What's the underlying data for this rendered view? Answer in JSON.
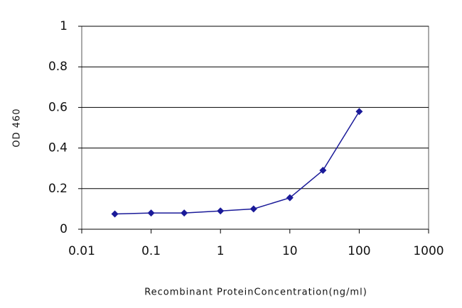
{
  "chart_data": {
    "type": "line",
    "y_label": "OD 460",
    "x_label": "Recombinant ProteinConcentration(ng/ml)",
    "x": [
      0.03,
      0.1,
      0.3,
      1,
      3,
      10,
      30,
      100
    ],
    "values": [
      0.075,
      0.08,
      0.08,
      0.09,
      0.1,
      0.155,
      0.29,
      0.58
    ],
    "color": "#1a1a99",
    "xscale": "log",
    "xlim": [
      0.01,
      1000
    ],
    "xticks": [
      0.01,
      0.1,
      1,
      10,
      100,
      1000
    ],
    "ylim": [
      0,
      1
    ],
    "yticks": [
      0,
      0.2,
      0.4,
      0.6,
      0.8,
      1
    ],
    "grid": true
  }
}
